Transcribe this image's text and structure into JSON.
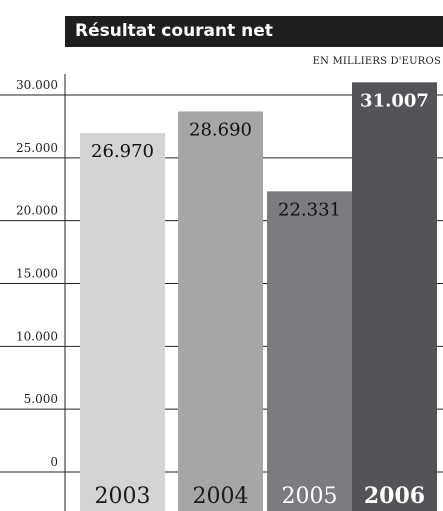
{
  "chart_data": {
    "type": "bar",
    "title": "Résultat courant net",
    "unit": "EN MILLIERS D'EUROS",
    "categories": [
      "2003",
      "2004",
      "2005",
      "2006"
    ],
    "values": [
      26970,
      28690,
      22331,
      31007
    ],
    "value_labels": [
      "26.970",
      "28.690",
      "22.331",
      "31.007"
    ],
    "yticks": [
      0,
      5000,
      10000,
      15000,
      20000,
      25000,
      30000
    ],
    "ytick_labels": [
      "0",
      "5.000",
      "10.000",
      "15.000",
      "20.000",
      "25.000",
      "30.000"
    ],
    "ylim": [
      0,
      30000
    ],
    "grid": true,
    "bar_colors": [
      "#d3d3d5",
      "#a5a6a8",
      "#7b7c80",
      "#535457"
    ],
    "category_label_colors": [
      "#1a1a1a",
      "#1a1a1a",
      "#ffffff",
      "#ffffff"
    ],
    "category_label_bold": [
      false,
      false,
      false,
      true
    ]
  }
}
